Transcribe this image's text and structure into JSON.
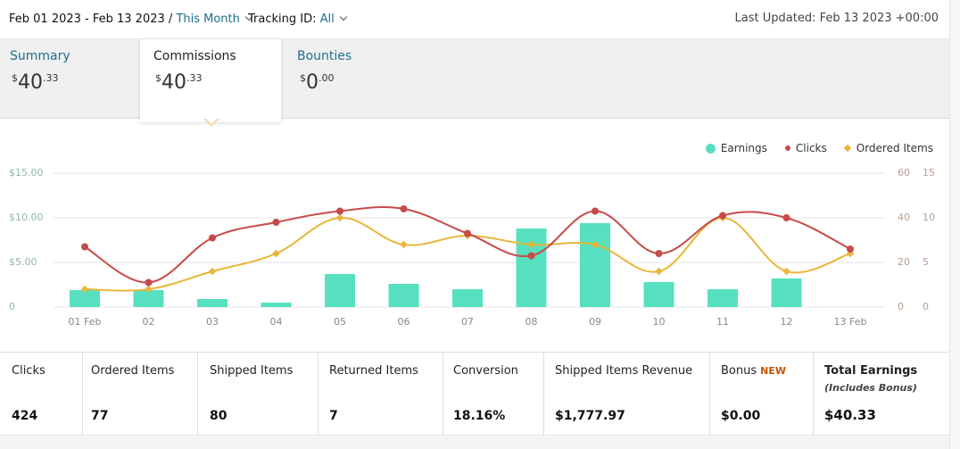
{
  "header": {
    "date_range": "Feb 01 2023 - Feb 13 2023 /",
    "period": "This Month",
    "tracking_label": "Tracking ID:",
    "tracking_value": "All",
    "last_updated": "Last Updated: Feb 13 2023 +00:00"
  },
  "tabs": [
    {
      "name": "Summary",
      "currency": "$",
      "whole": "40",
      "cents": ".33"
    },
    {
      "name": "Commissions",
      "currency": "$",
      "whole": "40",
      "cents": ".33"
    },
    {
      "name": "Bounties",
      "currency": "$",
      "whole": "0",
      "cents": ".00"
    }
  ],
  "legend": {
    "earnings": "Earnings",
    "clicks": "Clicks",
    "ordered": "Ordered Items"
  },
  "colors": {
    "earnings": "#57e0c0",
    "clicks": "#c84a4a",
    "ordered": "#e8b63a",
    "link": "#1d6f8c"
  },
  "chart_data": {
    "type": "bar",
    "categories": [
      "01 Feb",
      "02",
      "03",
      "04",
      "05",
      "06",
      "07",
      "08",
      "09",
      "10",
      "11",
      "12",
      "13 Feb"
    ],
    "y_left_ticks": [
      "$15.00",
      "$10.00",
      "$5.00",
      "0"
    ],
    "y_mid_ticks": [
      "60",
      "40",
      "20",
      "0"
    ],
    "y_right_ticks": [
      "15",
      "10",
      "5",
      "0"
    ],
    "y_left_range": [
      0,
      15
    ],
    "y_mid_range": [
      0,
      60
    ],
    "y_right_range": [
      0,
      15
    ],
    "series": [
      {
        "name": "Earnings",
        "type": "bar",
        "axis": "left",
        "values": [
          1.9,
          1.9,
          0.9,
          0.5,
          3.7,
          2.6,
          2.0,
          8.8,
          9.4,
          2.8,
          2.0,
          3.2,
          0
        ]
      },
      {
        "name": "Clicks",
        "type": "line",
        "axis": "mid",
        "values": [
          27,
          11,
          31,
          38,
          43,
          44,
          33,
          23,
          43,
          24,
          41,
          40,
          26
        ]
      },
      {
        "name": "Ordered Items",
        "type": "line",
        "axis": "right",
        "values": [
          2,
          2,
          4,
          6,
          10,
          7,
          8,
          7,
          7,
          4,
          10,
          4,
          6
        ]
      }
    ]
  },
  "metrics": [
    {
      "label": "Clicks",
      "value": "424"
    },
    {
      "label": "Ordered Items",
      "value": "77"
    },
    {
      "label": "Shipped Items",
      "value": "80"
    },
    {
      "label": "Returned Items",
      "value": "7"
    },
    {
      "label": "Conversion",
      "value": "18.16%"
    },
    {
      "label": "Shipped Items Revenue",
      "value": "$1,777.97"
    },
    {
      "label": "Bonus",
      "badge": "NEW",
      "value": "$0.00"
    },
    {
      "label": "Total Earnings",
      "sub": "(Includes Bonus)",
      "value": "$40.33"
    }
  ]
}
